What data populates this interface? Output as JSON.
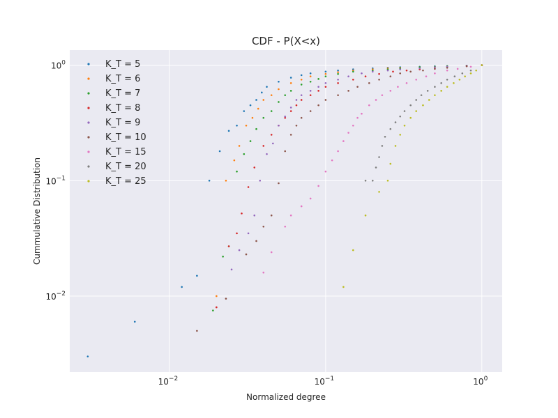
{
  "chart_data": {
    "type": "scatter",
    "title": "CDF - P(X<x)",
    "xlabel": "Normalized degree",
    "ylabel": "Cummulative Distribution",
    "xscale": "log",
    "yscale": "log",
    "xlim": [
      0.0023,
      1.35
    ],
    "ylim": [
      0.0022,
      1.35
    ],
    "x_ticks": [
      {
        "base": "10",
        "exp": "−2",
        "value": 0.01
      },
      {
        "base": "10",
        "exp": "−1",
        "value": 0.1
      },
      {
        "base": "10",
        "exp": "0",
        "value": 1
      }
    ],
    "y_ticks": [
      {
        "base": "10",
        "exp": "−2",
        "value": 0.01
      },
      {
        "base": "10",
        "exp": "−1",
        "value": 0.1
      },
      {
        "base": "10",
        "exp": "0",
        "value": 1
      }
    ],
    "grid": true,
    "legend_position": "top-left",
    "background": "#eaeaf2",
    "series": [
      {
        "name": "K_T = 5",
        "color": "#1f77b4",
        "points": [
          [
            0.003,
            0.003
          ],
          [
            0.006,
            0.006
          ],
          [
            0.012,
            0.012
          ],
          [
            0.015,
            0.015
          ],
          [
            0.018,
            0.1
          ],
          [
            0.021,
            0.18
          ],
          [
            0.024,
            0.27
          ],
          [
            0.027,
            0.3
          ],
          [
            0.03,
            0.4
          ],
          [
            0.033,
            0.45
          ],
          [
            0.036,
            0.5
          ],
          [
            0.039,
            0.58
          ],
          [
            0.042,
            0.65
          ],
          [
            0.05,
            0.72
          ],
          [
            0.06,
            0.78
          ],
          [
            0.07,
            0.82
          ],
          [
            0.08,
            0.85
          ],
          [
            0.1,
            0.88
          ],
          [
            0.12,
            0.9
          ],
          [
            0.15,
            0.92
          ],
          [
            0.2,
            0.94
          ],
          [
            0.25,
            0.95
          ],
          [
            0.3,
            0.96
          ],
          [
            0.4,
            0.97
          ],
          [
            0.5,
            0.98
          ],
          [
            0.6,
            0.985
          ],
          [
            0.8,
            0.99
          ],
          [
            1.0,
            1.0
          ]
        ]
      },
      {
        "name": "K_T = 6",
        "color": "#ff7f0e",
        "points": [
          [
            0.02,
            0.01
          ],
          [
            0.023,
            0.1
          ],
          [
            0.026,
            0.15
          ],
          [
            0.028,
            0.2
          ],
          [
            0.031,
            0.3
          ],
          [
            0.034,
            0.35
          ],
          [
            0.037,
            0.42
          ],
          [
            0.04,
            0.5
          ],
          [
            0.045,
            0.55
          ],
          [
            0.05,
            0.62
          ],
          [
            0.06,
            0.7
          ],
          [
            0.07,
            0.75
          ],
          [
            0.08,
            0.8
          ],
          [
            0.1,
            0.84
          ],
          [
            0.12,
            0.87
          ],
          [
            0.15,
            0.9
          ],
          [
            0.2,
            0.92
          ],
          [
            0.25,
            0.94
          ],
          [
            0.3,
            0.95
          ],
          [
            0.4,
            0.96
          ],
          [
            0.5,
            0.97
          ],
          [
            0.6,
            0.98
          ],
          [
            0.8,
            0.99
          ],
          [
            1.0,
            1.0
          ]
        ]
      },
      {
        "name": "K_T = 7",
        "color": "#2ca02c",
        "points": [
          [
            0.019,
            0.0075
          ],
          [
            0.022,
            0.022
          ],
          [
            0.024,
            0.027
          ],
          [
            0.027,
            0.12
          ],
          [
            0.03,
            0.17
          ],
          [
            0.033,
            0.22
          ],
          [
            0.036,
            0.28
          ],
          [
            0.04,
            0.35
          ],
          [
            0.045,
            0.4
          ],
          [
            0.05,
            0.48
          ],
          [
            0.055,
            0.55
          ],
          [
            0.06,
            0.6
          ],
          [
            0.07,
            0.68
          ],
          [
            0.08,
            0.72
          ],
          [
            0.09,
            0.76
          ],
          [
            0.1,
            0.8
          ],
          [
            0.12,
            0.84
          ],
          [
            0.15,
            0.88
          ],
          [
            0.2,
            0.9
          ],
          [
            0.25,
            0.92
          ],
          [
            0.3,
            0.94
          ],
          [
            0.4,
            0.96
          ],
          [
            0.5,
            0.97
          ],
          [
            0.6,
            0.98
          ],
          [
            0.8,
            0.99
          ],
          [
            1.0,
            1.0
          ]
        ]
      },
      {
        "name": "K_T = 8",
        "color": "#d62728",
        "points": [
          [
            0.02,
            0.008
          ],
          [
            0.024,
            0.027
          ],
          [
            0.027,
            0.035
          ],
          [
            0.029,
            0.052
          ],
          [
            0.032,
            0.088
          ],
          [
            0.035,
            0.13
          ],
          [
            0.04,
            0.2
          ],
          [
            0.045,
            0.25
          ],
          [
            0.05,
            0.3
          ],
          [
            0.055,
            0.35
          ],
          [
            0.06,
            0.4
          ],
          [
            0.065,
            0.45
          ],
          [
            0.07,
            0.5
          ],
          [
            0.08,
            0.55
          ],
          [
            0.09,
            0.6
          ],
          [
            0.1,
            0.65
          ],
          [
            0.12,
            0.7
          ],
          [
            0.15,
            0.75
          ],
          [
            0.18,
            0.8
          ],
          [
            0.22,
            0.84
          ],
          [
            0.27,
            0.88
          ],
          [
            0.33,
            0.9
          ],
          [
            0.4,
            0.92
          ],
          [
            0.5,
            0.94
          ],
          [
            0.6,
            0.96
          ],
          [
            0.8,
            0.98
          ],
          [
            1.0,
            1.0
          ]
        ]
      },
      {
        "name": "K_T = 9",
        "color": "#9467bd",
        "points": [
          [
            0.025,
            0.017
          ],
          [
            0.028,
            0.025
          ],
          [
            0.032,
            0.035
          ],
          [
            0.035,
            0.05
          ],
          [
            0.038,
            0.1
          ],
          [
            0.042,
            0.17
          ],
          [
            0.046,
            0.21
          ],
          [
            0.05,
            0.3
          ],
          [
            0.055,
            0.36
          ],
          [
            0.06,
            0.43
          ],
          [
            0.065,
            0.5
          ],
          [
            0.07,
            0.55
          ],
          [
            0.08,
            0.6
          ],
          [
            0.09,
            0.65
          ],
          [
            0.1,
            0.7
          ],
          [
            0.12,
            0.75
          ],
          [
            0.14,
            0.8
          ],
          [
            0.17,
            0.85
          ],
          [
            0.2,
            0.88
          ],
          [
            0.25,
            0.9
          ],
          [
            0.3,
            0.92
          ],
          [
            0.4,
            0.94
          ],
          [
            0.5,
            0.96
          ],
          [
            0.6,
            0.97
          ],
          [
            0.8,
            0.99
          ],
          [
            1.0,
            1.0
          ]
        ]
      },
      {
        "name": "K_T = 10",
        "color": "#8c564b",
        "points": [
          [
            0.015,
            0.005
          ],
          [
            0.023,
            0.0095
          ],
          [
            0.031,
            0.023
          ],
          [
            0.036,
            0.03
          ],
          [
            0.04,
            0.04
          ],
          [
            0.045,
            0.05
          ],
          [
            0.05,
            0.095
          ],
          [
            0.055,
            0.18
          ],
          [
            0.06,
            0.25
          ],
          [
            0.065,
            0.3
          ],
          [
            0.07,
            0.35
          ],
          [
            0.08,
            0.4
          ],
          [
            0.09,
            0.45
          ],
          [
            0.1,
            0.5
          ],
          [
            0.12,
            0.55
          ],
          [
            0.14,
            0.6
          ],
          [
            0.16,
            0.65
          ],
          [
            0.19,
            0.7
          ],
          [
            0.22,
            0.75
          ],
          [
            0.26,
            0.8
          ],
          [
            0.3,
            0.85
          ],
          [
            0.35,
            0.88
          ],
          [
            0.42,
            0.9
          ],
          [
            0.5,
            0.93
          ],
          [
            0.6,
            0.95
          ],
          [
            0.8,
            0.98
          ],
          [
            1.0,
            1.0
          ]
        ]
      },
      {
        "name": "K_T = 15",
        "color": "#e377c2",
        "points": [
          [
            0.04,
            0.016
          ],
          [
            0.045,
            0.024
          ],
          [
            0.055,
            0.04
          ],
          [
            0.06,
            0.05
          ],
          [
            0.07,
            0.06
          ],
          [
            0.08,
            0.07
          ],
          [
            0.09,
            0.09
          ],
          [
            0.1,
            0.12
          ],
          [
            0.11,
            0.15
          ],
          [
            0.12,
            0.18
          ],
          [
            0.13,
            0.22
          ],
          [
            0.14,
            0.26
          ],
          [
            0.15,
            0.3
          ],
          [
            0.16,
            0.35
          ],
          [
            0.17,
            0.38
          ],
          [
            0.19,
            0.45
          ],
          [
            0.21,
            0.5
          ],
          [
            0.23,
            0.55
          ],
          [
            0.26,
            0.6
          ],
          [
            0.29,
            0.65
          ],
          [
            0.33,
            0.7
          ],
          [
            0.38,
            0.75
          ],
          [
            0.44,
            0.8
          ],
          [
            0.5,
            0.85
          ],
          [
            0.6,
            0.9
          ],
          [
            0.7,
            0.93
          ],
          [
            0.85,
            0.97
          ],
          [
            1.0,
            1.0
          ]
        ]
      },
      {
        "name": "K_T = 20",
        "color": "#7f7f7f",
        "points": [
          [
            0.18,
            0.1
          ],
          [
            0.2,
            0.1
          ],
          [
            0.21,
            0.13
          ],
          [
            0.22,
            0.16
          ],
          [
            0.23,
            0.2
          ],
          [
            0.24,
            0.24
          ],
          [
            0.26,
            0.28
          ],
          [
            0.28,
            0.32
          ],
          [
            0.3,
            0.36
          ],
          [
            0.32,
            0.4
          ],
          [
            0.35,
            0.45
          ],
          [
            0.38,
            0.5
          ],
          [
            0.41,
            0.55
          ],
          [
            0.45,
            0.6
          ],
          [
            0.5,
            0.65
          ],
          [
            0.55,
            0.7
          ],
          [
            0.6,
            0.75
          ],
          [
            0.67,
            0.8
          ],
          [
            0.75,
            0.85
          ],
          [
            0.85,
            0.9
          ],
          [
            1.0,
            1.0
          ]
        ]
      },
      {
        "name": "K_T = 25",
        "color": "#bcbd22",
        "points": [
          [
            0.13,
            0.012
          ],
          [
            0.15,
            0.025
          ],
          [
            0.18,
            0.05
          ],
          [
            0.22,
            0.08
          ],
          [
            0.25,
            0.1
          ],
          [
            0.26,
            0.14
          ],
          [
            0.28,
            0.2
          ],
          [
            0.3,
            0.25
          ],
          [
            0.32,
            0.3
          ],
          [
            0.35,
            0.35
          ],
          [
            0.38,
            0.4
          ],
          [
            0.42,
            0.45
          ],
          [
            0.46,
            0.5
          ],
          [
            0.5,
            0.55
          ],
          [
            0.55,
            0.6
          ],
          [
            0.6,
            0.65
          ],
          [
            0.66,
            0.7
          ],
          [
            0.72,
            0.75
          ],
          [
            0.78,
            0.8
          ],
          [
            0.85,
            0.85
          ],
          [
            0.92,
            0.9
          ],
          [
            1.0,
            1.0
          ]
        ]
      }
    ]
  }
}
